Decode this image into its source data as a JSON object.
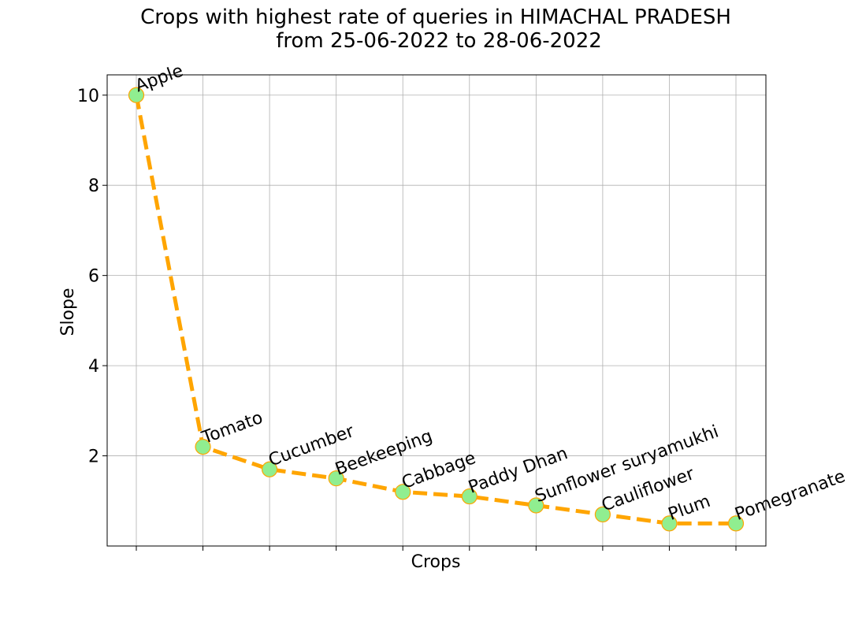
{
  "chart_data": {
    "type": "line",
    "title_line1": "Crops with highest rate of queries in HIMACHAL PRADESH",
    "title_line2": "from 25-06-2022 to 28-06-2022",
    "xlabel": "Crops",
    "ylabel": "Slope",
    "categories": [
      "Apple",
      "Tomato",
      "Cucumber",
      "Beekeeping",
      "Cabbage",
      "Paddy Dhan",
      "Sunflower suryamukhi",
      "Cauliflower",
      "Plum",
      "Pomegranate"
    ],
    "values": [
      10.0,
      2.2,
      1.7,
      1.5,
      1.2,
      1.1,
      0.9,
      0.7,
      0.5,
      0.5
    ],
    "ylim": [
      0.0,
      10.45
    ],
    "yticks": [
      2,
      4,
      6,
      8,
      10
    ],
    "grid": true,
    "colors": {
      "line": "#FFA500",
      "marker_fill": "#90EE90",
      "marker_edge": "#FFA500"
    }
  }
}
